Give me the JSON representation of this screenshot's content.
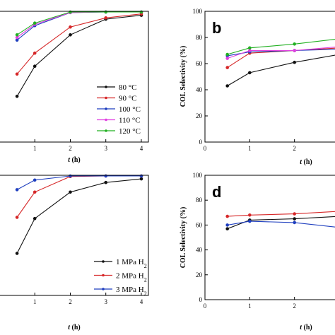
{
  "chart_data": [
    {
      "id": "a",
      "type": "line",
      "panel_letter": "",
      "xlabel": "t (h)",
      "ylabel": "",
      "xlim": [
        0,
        4.2
      ],
      "ylim": [
        0,
        100
      ],
      "xticks": [
        1,
        2,
        3,
        4
      ],
      "legend": "bottom-right",
      "series": [
        {
          "name": "80 °C",
          "color": "#111111",
          "x": [
            0.5,
            1,
            2,
            3,
            4
          ],
          "y": [
            35,
            58,
            82,
            94,
            97
          ]
        },
        {
          "name": "90 °C",
          "color": "#d62728",
          "x": [
            0.5,
            1,
            2,
            3,
            4
          ],
          "y": [
            52,
            68,
            88,
            95,
            98
          ]
        },
        {
          "name": "100 °C",
          "color": "#1f3fbf",
          "x": [
            0.5,
            1,
            2,
            3,
            4
          ],
          "y": [
            78,
            89,
            99,
            100,
            100
          ]
        },
        {
          "name": "110 °C",
          "color": "#e040e0",
          "x": [
            0.5,
            1,
            2,
            3,
            4
          ],
          "y": [
            80,
            90,
            99,
            100,
            100
          ]
        },
        {
          "name": "120 °C",
          "color": "#22b022",
          "x": [
            0.5,
            1,
            2,
            3,
            4
          ],
          "y": [
            82,
            91,
            100,
            100,
            100
          ]
        }
      ]
    },
    {
      "id": "b",
      "type": "line",
      "panel_letter": "b",
      "xlabel": "t (h)",
      "ylabel": "COL Selectivity (%)",
      "xlim": [
        0,
        3.0
      ],
      "ylim": [
        0,
        100
      ],
      "xticks": [
        0,
        1,
        2
      ],
      "yticks": [
        0,
        20,
        40,
        60,
        80,
        100
      ],
      "series": [
        {
          "name": "80 °C",
          "color": "#111111",
          "x": [
            0.5,
            1,
            2,
            3
          ],
          "y": [
            43,
            53,
            61,
            67
          ]
        },
        {
          "name": "90 °C",
          "color": "#d62728",
          "x": [
            0.5,
            1,
            2,
            3
          ],
          "y": [
            57,
            68,
            70,
            72
          ]
        },
        {
          "name": "100 °C",
          "color": "#1f3fbf",
          "x": [
            0.5,
            1,
            2,
            3
          ],
          "y": [
            66,
            69,
            70,
            71
          ]
        },
        {
          "name": "110 °C",
          "color": "#e040e0",
          "x": [
            0.5,
            1,
            2,
            3
          ],
          "y": [
            64,
            70,
            70,
            73
          ]
        },
        {
          "name": "120 °C",
          "color": "#22b022",
          "x": [
            0.5,
            1,
            2,
            3
          ],
          "y": [
            67,
            72,
            75,
            79
          ]
        }
      ]
    },
    {
      "id": "c",
      "type": "line",
      "panel_letter": "",
      "xlabel": "t (h)",
      "ylabel": "",
      "xlim": [
        0,
        4.2
      ],
      "ylim": [
        0,
        100
      ],
      "xticks": [
        1,
        2,
        3,
        4
      ],
      "legend": "bottom-right",
      "series": [
        {
          "name": "1 MPa H2",
          "color": "#111111",
          "x": [
            0.5,
            1,
            2,
            3,
            4
          ],
          "y": [
            35,
            64,
            86,
            94,
            97
          ]
        },
        {
          "name": "2 MPa H2",
          "color": "#d62728",
          "x": [
            0.5,
            1,
            2,
            3,
            4
          ],
          "y": [
            65,
            86,
            99,
            100,
            100
          ]
        },
        {
          "name": "3 MPa H2",
          "color": "#1f3fbf",
          "x": [
            0.5,
            1,
            2,
            3,
            4
          ],
          "y": [
            88,
            96,
            100,
            100,
            100
          ]
        }
      ]
    },
    {
      "id": "d",
      "type": "line",
      "panel_letter": "d",
      "xlabel": "t (h)",
      "ylabel": "COL Selectivity (%)",
      "xlim": [
        0,
        3.0
      ],
      "ylim": [
        0,
        100
      ],
      "xticks": [
        0,
        1,
        2
      ],
      "yticks": [
        0,
        20,
        40,
        60,
        80,
        100
      ],
      "series": [
        {
          "name": "1 MPa H2",
          "color": "#111111",
          "x": [
            0.5,
            1,
            2,
            3
          ],
          "y": [
            57,
            64,
            65,
            67
          ]
        },
        {
          "name": "2 MPa H2",
          "color": "#d62728",
          "x": [
            0.5,
            1,
            2,
            3
          ],
          "y": [
            67,
            68,
            69,
            71
          ]
        },
        {
          "name": "3 MPa H2",
          "color": "#1f3fbf",
          "x": [
            0.5,
            1,
            2,
            3
          ],
          "y": [
            60,
            63,
            62,
            58
          ]
        }
      ]
    }
  ],
  "legends": {
    "a": [
      {
        "label": "80 °C",
        "color": "#111111"
      },
      {
        "label": "90 °C",
        "color": "#d62728"
      },
      {
        "label": "100 °C",
        "color": "#1f3fbf"
      },
      {
        "label": "110 °C",
        "color": "#e040e0"
      },
      {
        "label": "120 °C",
        "color": "#22b022"
      }
    ],
    "c": [
      {
        "label": "1 MPa H",
        "sub": "2",
        "color": "#111111"
      },
      {
        "label": "2 MPa H",
        "sub": "2",
        "color": "#d62728"
      },
      {
        "label": "3 MPa H",
        "sub": "2",
        "color": "#1f3fbf"
      }
    ]
  }
}
